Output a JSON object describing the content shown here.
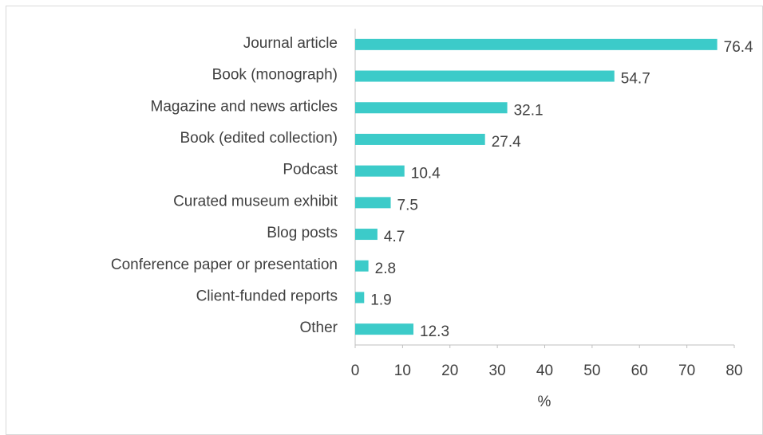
{
  "chart_data": {
    "type": "bar",
    "orientation": "horizontal",
    "categories": [
      "Journal article",
      "Book (monograph)",
      "Magazine and news articles",
      "Book (edited collection)",
      "Podcast",
      "Curated museum exhibit",
      "Blog posts",
      "Conference paper or presentation",
      "Client-funded reports",
      "Other"
    ],
    "values": [
      76.4,
      54.7,
      32.1,
      27.4,
      10.4,
      7.5,
      4.7,
      2.8,
      1.9,
      12.3
    ],
    "color": "#3ccbc9",
    "xlabel": "%",
    "xlim": [
      0,
      80
    ],
    "xticks": [
      0,
      10,
      20,
      30,
      40,
      50,
      60,
      70,
      80
    ],
    "grid": false
  }
}
